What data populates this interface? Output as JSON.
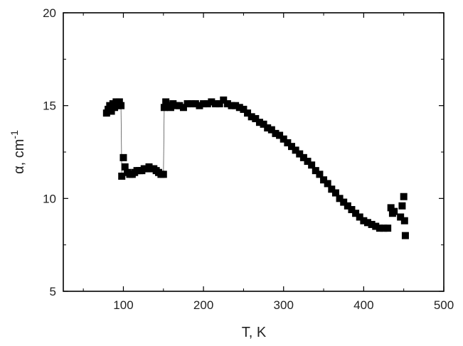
{
  "chart_data": {
    "type": "scatter",
    "title": "",
    "xlabel": "T, K",
    "ylabel": "α, cm",
    "ylabel_superscript": "-1",
    "xlim": [
      25,
      500
    ],
    "ylim": [
      5,
      20
    ],
    "xticks": [
      "100",
      "200",
      "300",
      "400",
      "500"
    ],
    "yticks": [
      "5",
      "10",
      "15",
      "20"
    ],
    "grid": false,
    "legend": "none",
    "marker_color": "#000000",
    "series": [
      {
        "x": [
          79,
          81,
          83,
          85,
          87,
          89,
          91,
          93,
          95,
          97,
          98,
          100,
          102,
          105,
          108,
          111,
          114,
          117,
          120,
          123,
          126,
          129,
          132,
          135,
          138,
          141,
          144,
          147,
          150,
          151,
          153,
          156,
          159,
          162,
          166,
          170,
          175,
          180,
          185,
          190,
          195,
          200,
          205,
          210,
          215,
          220,
          225,
          230,
          235,
          240,
          245,
          250,
          255,
          260,
          265,
          270,
          275,
          280,
          285,
          290,
          295,
          300,
          305,
          310,
          315,
          320,
          325,
          330,
          335,
          340,
          345,
          350,
          355,
          360,
          365,
          370,
          375,
          380,
          385,
          390,
          395,
          400,
          405,
          410,
          415,
          420,
          425,
          430,
          434,
          436,
          438,
          446,
          448,
          450,
          451,
          452
        ],
        "y": [
          14.6,
          14.8,
          15.0,
          14.7,
          15.1,
          14.9,
          15.2,
          15.0,
          15.2,
          15.0,
          11.2,
          12.2,
          11.7,
          11.4,
          11.3,
          11.3,
          11.4,
          11.5,
          11.5,
          11.5,
          11.6,
          11.6,
          11.7,
          11.6,
          11.6,
          11.5,
          11.4,
          11.3,
          11.3,
          14.9,
          15.2,
          15.0,
          14.9,
          15.1,
          15.0,
          15.0,
          14.9,
          15.1,
          15.1,
          15.1,
          15.0,
          15.1,
          15.1,
          15.2,
          15.1,
          15.1,
          15.3,
          15.1,
          15.0,
          15.0,
          14.9,
          14.8,
          14.6,
          14.4,
          14.3,
          14.1,
          14.0,
          13.8,
          13.7,
          13.5,
          13.4,
          13.2,
          13.0,
          12.8,
          12.6,
          12.4,
          12.2,
          12.0,
          11.8,
          11.5,
          11.3,
          11.0,
          10.8,
          10.5,
          10.3,
          10.0,
          9.8,
          9.6,
          9.4,
          9.2,
          9.0,
          8.8,
          8.7,
          8.6,
          8.5,
          8.4,
          8.4,
          8.4,
          9.5,
          9.2,
          9.3,
          9.0,
          9.6,
          10.1,
          8.8,
          8.0
        ]
      }
    ],
    "connectors": [
      {
        "x": [
          97,
          98
        ],
        "y": [
          14.9,
          11.4
        ]
      },
      {
        "x": [
          150,
          151
        ],
        "y": [
          11.3,
          14.9
        ]
      }
    ]
  }
}
